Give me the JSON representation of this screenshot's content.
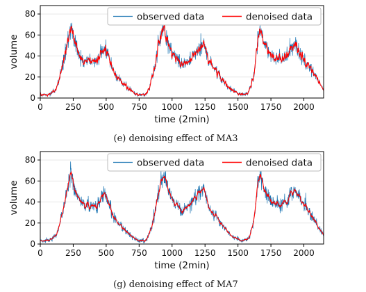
{
  "colors": {
    "observed": "#1f77b4",
    "denoised": "#ff0000"
  },
  "chart_data": [
    {
      "type": "line",
      "caption": "(e) denoising effect of MA3",
      "xlabel": "time (2min)",
      "ylabel": "volume",
      "xlim": [
        0,
        2150
      ],
      "ylim": [
        0,
        88
      ],
      "xticks": [
        0,
        250,
        500,
        750,
        1000,
        1250,
        1500,
        1750,
        2000
      ],
      "yticks": [
        0,
        20,
        40,
        60,
        80
      ],
      "legend_position": "top-right",
      "smoothing_window": 3,
      "series": [
        {
          "name": "observed data",
          "color": "#1f77b4"
        },
        {
          "name": "denoised data",
          "color": "#ff0000"
        }
      ],
      "baseline": {
        "x": [
          0,
          60,
          120,
          170,
          210,
          230,
          260,
          290,
          330,
          380,
          430,
          470,
          500,
          530,
          560,
          600,
          650,
          700,
          750,
          800,
          830,
          870,
          910,
          940,
          970,
          1010,
          1060,
          1110,
          1160,
          1200,
          1240,
          1280,
          1320,
          1370,
          1420,
          1470,
          1530,
          1580,
          1620,
          1650,
          1670,
          1700,
          1760,
          1820,
          1870,
          1910,
          1940,
          1980,
          2040,
          2100,
          2150
        ],
        "y": [
          3,
          3,
          8,
          30,
          55,
          67,
          55,
          42,
          36,
          35,
          38,
          45,
          47,
          35,
          25,
          18,
          12,
          6,
          3,
          3,
          10,
          30,
          57,
          67,
          52,
          40,
          33,
          34,
          40,
          48,
          51,
          35,
          28,
          20,
          12,
          6,
          3,
          5,
          20,
          57,
          67,
          52,
          38,
          38,
          40,
          48,
          50,
          40,
          30,
          18,
          8
        ]
      }
    },
    {
      "type": "line",
      "caption": "(g) denoising effect of MA7",
      "xlabel": "time (2min)",
      "ylabel": "volume",
      "xlim": [
        0,
        2150
      ],
      "ylim": [
        0,
        88
      ],
      "xticks": [
        0,
        250,
        500,
        750,
        1000,
        1250,
        1500,
        1750,
        2000
      ],
      "yticks": [
        0,
        20,
        40,
        60,
        80
      ],
      "legend_position": "top-right",
      "smoothing_window": 7,
      "series": [
        {
          "name": "observed data",
          "color": "#1f77b4"
        },
        {
          "name": "denoised data",
          "color": "#ff0000"
        }
      ],
      "baseline": {
        "x": [
          0,
          60,
          120,
          170,
          210,
          230,
          260,
          290,
          330,
          380,
          430,
          470,
          500,
          530,
          560,
          600,
          650,
          700,
          750,
          800,
          830,
          870,
          910,
          940,
          970,
          1010,
          1060,
          1110,
          1160,
          1200,
          1240,
          1280,
          1320,
          1370,
          1420,
          1470,
          1530,
          1580,
          1620,
          1650,
          1670,
          1700,
          1760,
          1820,
          1870,
          1910,
          1940,
          1980,
          2040,
          2100,
          2150
        ],
        "y": [
          3,
          3,
          8,
          30,
          55,
          67,
          55,
          42,
          36,
          35,
          38,
          45,
          47,
          35,
          25,
          18,
          12,
          6,
          3,
          3,
          10,
          30,
          57,
          67,
          52,
          40,
          33,
          34,
          40,
          48,
          51,
          35,
          28,
          20,
          12,
          6,
          3,
          5,
          20,
          57,
          67,
          52,
          38,
          38,
          40,
          48,
          50,
          40,
          30,
          18,
          8
        ]
      }
    }
  ]
}
